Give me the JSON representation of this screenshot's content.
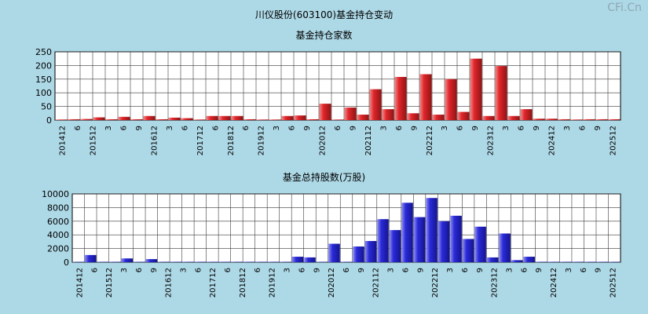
{
  "main_title": "川仪股份(603100)基金持仓变动",
  "watermark": "CFi.Cn",
  "colors": {
    "background": "#add8e6",
    "plot_bg": "#ffffff",
    "grid": "#3a3a3a",
    "red_bar": "#e0262b",
    "blue_bar": "#2a2ad8"
  },
  "chart_data": [
    {
      "type": "bar",
      "title": "基金持仓家数",
      "ylim": [
        0,
        250
      ],
      "yticks": [
        0,
        50,
        100,
        150,
        200,
        250
      ],
      "categories": [
        "201412",
        "3",
        "6",
        "9",
        "201512",
        "3",
        "6",
        "9",
        "201612",
        "3",
        "6",
        "9",
        "201712",
        "3",
        "6",
        "9",
        "201812",
        "3",
        "6",
        "9",
        "201912",
        "3",
        "6",
        "9",
        "202012",
        "3",
        "6",
        "9",
        "202112",
        "3",
        "6",
        "9",
        "202212",
        "3",
        "6",
        "9",
        "202312",
        "3",
        "6",
        "9",
        "202412",
        "3",
        "6",
        "9",
        "202512"
      ],
      "values": [
        2,
        3,
        4,
        10,
        3,
        12,
        3,
        15,
        3,
        9,
        7,
        2,
        15,
        15,
        15,
        3,
        2,
        2,
        15,
        17,
        3,
        60,
        2,
        46,
        20,
        113,
        40,
        158,
        25,
        168,
        20,
        150,
        30,
        225,
        15,
        198,
        15,
        40,
        5,
        5,
        3,
        2,
        3,
        3,
        3
      ],
      "xtick_labels": [
        "201412",
        "6",
        "201512",
        "3",
        "6",
        "9",
        "201612",
        "3",
        "6",
        "201712",
        "6",
        "201812",
        "6",
        "201912",
        "3",
        "6",
        "9",
        "202012",
        "6",
        "9",
        "202112",
        "3",
        "6",
        "9",
        "202212",
        "3",
        "6",
        "9",
        "202312",
        "3",
        "6",
        "9",
        "202412",
        "3",
        "6",
        "9",
        "202512"
      ]
    },
    {
      "type": "bar",
      "title": "基金总持股数(万股)",
      "ylim": [
        0,
        10000
      ],
      "yticks": [
        0,
        2000,
        4000,
        6000,
        8000,
        10000
      ],
      "categories": [
        "201412",
        "3",
        "6",
        "9",
        "201512",
        "3",
        "6",
        "9",
        "201612",
        "3",
        "6",
        "9",
        "201712",
        "3",
        "6",
        "9",
        "201812",
        "3",
        "6",
        "9",
        "201912",
        "3",
        "6",
        "9",
        "202012",
        "3",
        "6",
        "9",
        "202112",
        "3",
        "6",
        "9",
        "202212",
        "3",
        "6",
        "9",
        "202312",
        "3",
        "6",
        "9",
        "202412",
        "3",
        "6",
        "9",
        "202512"
      ],
      "values": [
        50,
        1050,
        50,
        50,
        550,
        50,
        450,
        50,
        50,
        50,
        50,
        50,
        50,
        50,
        50,
        50,
        50,
        50,
        800,
        700,
        50,
        2700,
        50,
        2300,
        3100,
        6300,
        4700,
        8700,
        6600,
        9400,
        6000,
        6800,
        3400,
        5200,
        700,
        4200,
        300,
        800,
        50,
        50,
        50,
        50,
        50,
        50,
        50
      ],
      "xtick_labels": [
        "201412",
        "6",
        "201512",
        "3",
        "6",
        "9",
        "201612",
        "3",
        "6",
        "201712",
        "6",
        "201812",
        "6",
        "201912",
        "3",
        "6",
        "9",
        "202012",
        "6",
        "9",
        "202112",
        "3",
        "6",
        "9",
        "202212",
        "3",
        "6",
        "9",
        "202312",
        "3",
        "6",
        "9",
        "202412",
        "3",
        "6",
        "9",
        "202512"
      ]
    }
  ]
}
